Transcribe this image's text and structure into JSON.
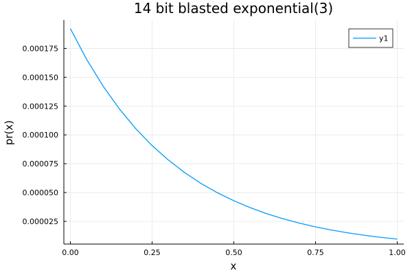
{
  "chart_data": {
    "type": "line",
    "title": "14 bit blasted exponential(3)",
    "xlabel": "x",
    "ylabel": "pr(x)",
    "xlim": [
      -0.02,
      1.02
    ],
    "ylim": [
      5.3e-06,
      0.0001997
    ],
    "x_ticks": [
      0.0,
      0.25,
      0.5,
      0.75,
      1.0
    ],
    "x_tick_labels": [
      "0.00",
      "0.25",
      "0.50",
      "0.75",
      "1.00"
    ],
    "y_ticks": [
      2.5e-05,
      5e-05,
      7.5e-05,
      0.0001,
      0.000125,
      0.00015,
      0.000175
    ],
    "y_tick_labels": [
      "0.000025",
      "0.000050",
      "0.000075",
      "0.000100",
      "0.000125",
      "0.000150",
      "0.000175"
    ],
    "grid": true,
    "legend_position": "top-right",
    "series": [
      {
        "name": "y1",
        "color": "#009AFA",
        "x": [
          0.0,
          0.05,
          0.1,
          0.15,
          0.2,
          0.25,
          0.3,
          0.35,
          0.4,
          0.45,
          0.5,
          0.55,
          0.6,
          0.65,
          0.7,
          0.75,
          0.8,
          0.85,
          0.9,
          0.95,
          1.0
        ],
        "y": [
          0.0001921,
          0.0001653,
          0.0001423,
          0.0001225,
          0.0001054,
          9.07e-05,
          7.81e-05,
          6.72e-05,
          5.78e-05,
          4.98e-05,
          4.29e-05,
          3.69e-05,
          3.17e-05,
          2.73e-05,
          2.35e-05,
          2.02e-05,
          1.74e-05,
          1.5e-05,
          1.29e-05,
          1.11e-05,
          9.6e-06
        ]
      }
    ]
  }
}
